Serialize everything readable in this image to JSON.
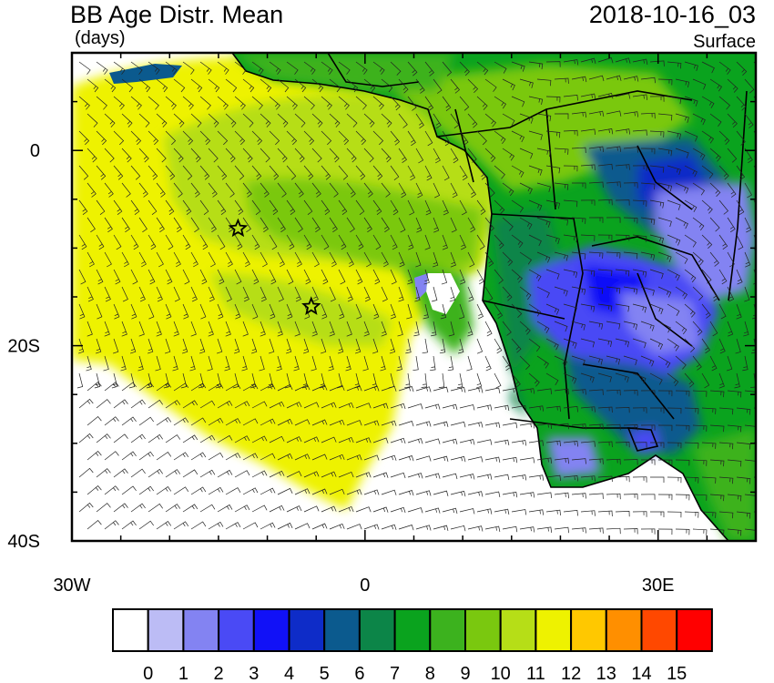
{
  "header": {
    "title": "BB Age Distr. Mean",
    "units": "(days)",
    "datetime": "2018-10-16_03",
    "level": "Surface"
  },
  "axes": {
    "x_ticks": [
      {
        "value": -30,
        "label": "30W"
      },
      {
        "value": 0,
        "label": "0"
      },
      {
        "value": 30,
        "label": "30E"
      }
    ],
    "y_ticks": [
      {
        "value": 0,
        "label": "0"
      },
      {
        "value": -20,
        "label": "20S"
      },
      {
        "value": -40,
        "label": "40S"
      }
    ],
    "lon_range": [
      -30,
      40
    ],
    "lat_range": [
      -40,
      10
    ]
  },
  "colorbar": {
    "labels": [
      "0",
      "1",
      "2",
      "3",
      "4",
      "5",
      "6",
      "7",
      "8",
      "9",
      "10",
      "11",
      "12",
      "13",
      "14",
      "15"
    ],
    "colors": [
      "#ffffff",
      "#bcbcf5",
      "#8383f2",
      "#4a4af5",
      "#1111f7",
      "#0e2cc8",
      "#0b5a8e",
      "#0c8548",
      "#0aa31e",
      "#3cb21e",
      "#7ac80f",
      "#b6de17",
      "#eef200",
      "#ffc800",
      "#ff8f00",
      "#ff4800",
      "#ff0000"
    ]
  },
  "markers": [
    {
      "name": "star",
      "lon": -13,
      "lat": -8
    },
    {
      "name": "star",
      "lon": -5.5,
      "lat": -16
    }
  ]
}
